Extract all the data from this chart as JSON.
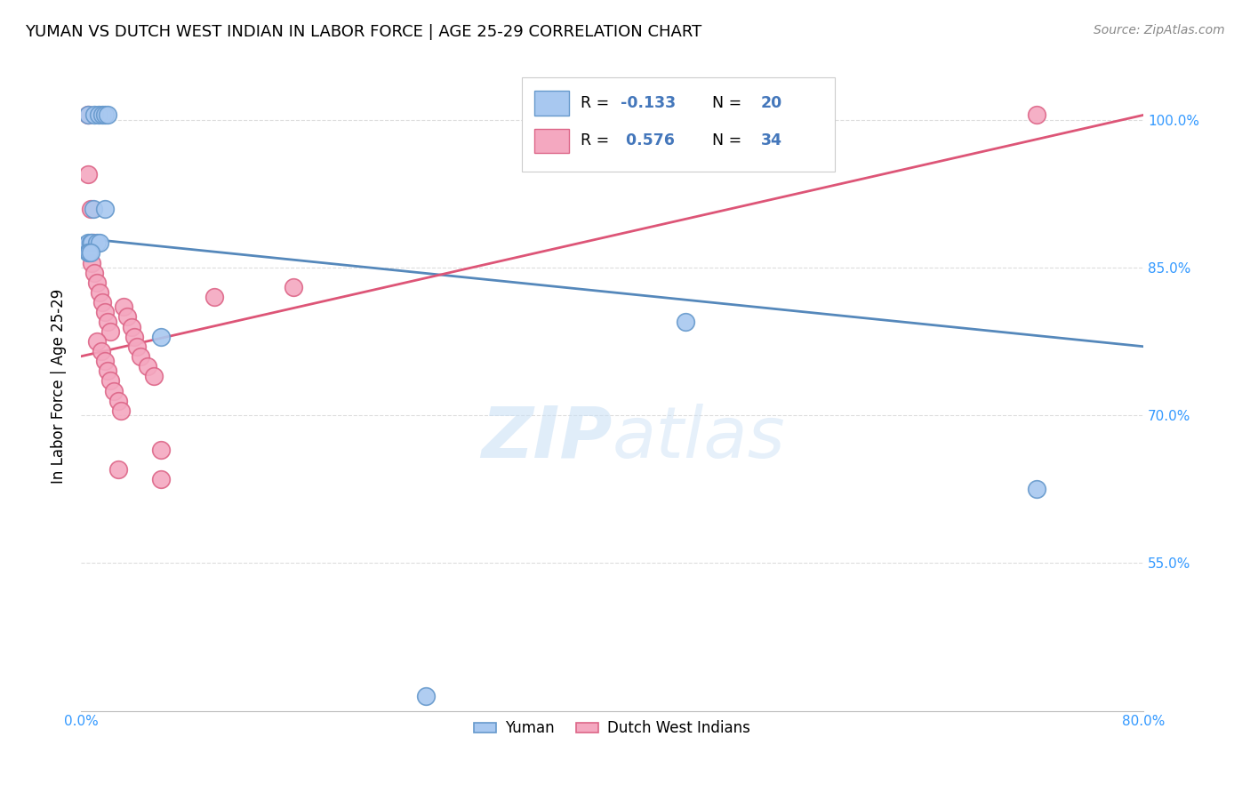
{
  "title": "YUMAN VS DUTCH WEST INDIAN IN LABOR FORCE | AGE 25-29 CORRELATION CHART",
  "source": "Source: ZipAtlas.com",
  "ylabel": "In Labor Force | Age 25-29",
  "watermark": "ZIPatlas",
  "xlim": [
    0.0,
    0.8
  ],
  "ylim": [
    0.4,
    1.06
  ],
  "xticks": [
    0.0,
    0.1,
    0.2,
    0.3,
    0.4,
    0.5,
    0.6,
    0.7,
    0.8
  ],
  "xticklabels": [
    "0.0%",
    "",
    "",
    "",
    "",
    "",
    "",
    "",
    "80.0%"
  ],
  "ytick_positions": [
    0.55,
    0.7,
    0.85,
    1.0
  ],
  "yticklabels": [
    "55.0%",
    "70.0%",
    "85.0%",
    "100.0%"
  ],
  "yuman_color": "#A8C8F0",
  "dwi_color": "#F4A8C0",
  "yuman_edge_color": "#6699CC",
  "dwi_edge_color": "#DD6688",
  "yuman_line_color": "#5588BB",
  "dwi_line_color": "#DD5577",
  "legend_color": "#4477BB",
  "yuman_scatter": [
    [
      0.005,
      1.005
    ],
    [
      0.01,
      1.005
    ],
    [
      0.013,
      1.005
    ],
    [
      0.016,
      1.005
    ],
    [
      0.018,
      1.005
    ],
    [
      0.02,
      1.005
    ],
    [
      0.009,
      0.91
    ],
    [
      0.018,
      0.91
    ],
    [
      0.005,
      0.875
    ],
    [
      0.007,
      0.875
    ],
    [
      0.008,
      0.875
    ],
    [
      0.012,
      0.875
    ],
    [
      0.014,
      0.875
    ],
    [
      0.005,
      0.865
    ],
    [
      0.006,
      0.865
    ],
    [
      0.007,
      0.865
    ],
    [
      0.06,
      0.78
    ],
    [
      0.455,
      0.795
    ],
    [
      0.72,
      0.625
    ],
    [
      0.26,
      0.415
    ]
  ],
  "dwi_scatter": [
    [
      0.005,
      1.005
    ],
    [
      0.005,
      0.945
    ],
    [
      0.007,
      0.91
    ],
    [
      0.009,
      0.875
    ],
    [
      0.008,
      0.855
    ],
    [
      0.01,
      0.845
    ],
    [
      0.012,
      0.835
    ],
    [
      0.014,
      0.825
    ],
    [
      0.016,
      0.815
    ],
    [
      0.018,
      0.805
    ],
    [
      0.02,
      0.795
    ],
    [
      0.022,
      0.785
    ],
    [
      0.012,
      0.775
    ],
    [
      0.015,
      0.765
    ],
    [
      0.018,
      0.755
    ],
    [
      0.02,
      0.745
    ],
    [
      0.022,
      0.735
    ],
    [
      0.025,
      0.725
    ],
    [
      0.028,
      0.715
    ],
    [
      0.03,
      0.705
    ],
    [
      0.032,
      0.81
    ],
    [
      0.035,
      0.8
    ],
    [
      0.038,
      0.79
    ],
    [
      0.04,
      0.78
    ],
    [
      0.042,
      0.77
    ],
    [
      0.045,
      0.76
    ],
    [
      0.05,
      0.75
    ],
    [
      0.055,
      0.74
    ],
    [
      0.06,
      0.665
    ],
    [
      0.028,
      0.645
    ],
    [
      0.06,
      0.635
    ],
    [
      0.1,
      0.82
    ],
    [
      0.16,
      0.83
    ],
    [
      0.72,
      1.005
    ]
  ],
  "yuman_trend_x": [
    0.0,
    0.8
  ],
  "yuman_trend_y": [
    0.88,
    0.77
  ],
  "dwi_trend_x": [
    0.0,
    0.8
  ],
  "dwi_trend_y": [
    0.76,
    1.005
  ],
  "background_color": "#ffffff",
  "grid_color": "#dddddd",
  "title_fontsize": 13,
  "axis_label_fontsize": 12,
  "tick_fontsize": 11,
  "tick_color": "#3399ff",
  "source_fontsize": 10,
  "legend_R_yuman": "-0.133",
  "legend_N_yuman": "20",
  "legend_R_dwi": "0.576",
  "legend_N_dwi": "34"
}
